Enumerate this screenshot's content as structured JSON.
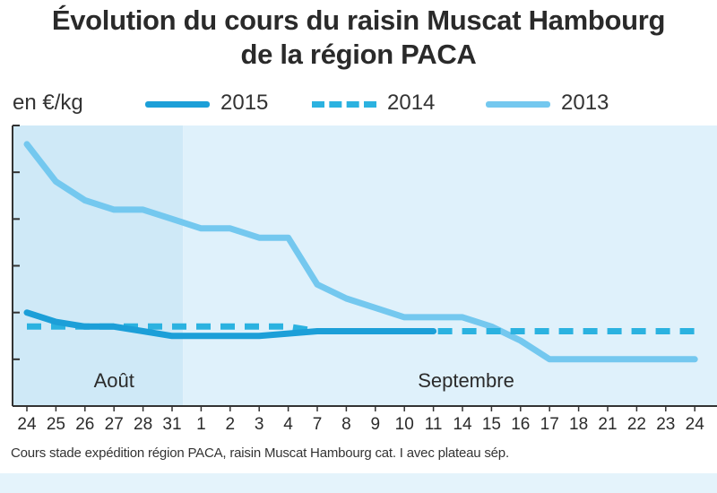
{
  "chart_data": {
    "type": "line",
    "title": [
      "Évolution du cours du raisin Muscat Hambourg",
      "de la région PACA"
    ],
    "ylabel": "en €/kg",
    "month_labels": [
      "Août",
      "Septembre"
    ],
    "categories": [
      "24",
      "25",
      "26",
      "27",
      "28",
      "31",
      "1",
      "2",
      "3",
      "4",
      "7",
      "8",
      "9",
      "10",
      "11",
      "14",
      "15",
      "16",
      "17",
      "18",
      "21",
      "22",
      "23",
      "24"
    ],
    "ylim": [
      0,
      6
    ],
    "series": [
      {
        "name": "2015",
        "style": "solid",
        "color": "#1c9fd8",
        "values": [
          2.0,
          1.8,
          1.7,
          1.7,
          1.6,
          1.5,
          1.5,
          1.5,
          1.5,
          1.55,
          1.6,
          1.6,
          1.6,
          1.6,
          1.6,
          null,
          null,
          null,
          null,
          null,
          null,
          null,
          null,
          null
        ]
      },
      {
        "name": "2014",
        "style": "dashed",
        "color": "#2bb2e0",
        "values": [
          1.7,
          1.7,
          1.7,
          1.7,
          1.7,
          1.7,
          1.7,
          1.7,
          1.7,
          1.7,
          1.6,
          1.6,
          1.6,
          1.6,
          1.6,
          1.6,
          1.6,
          1.6,
          1.6,
          1.6,
          1.6,
          1.6,
          1.6,
          1.6
        ]
      },
      {
        "name": "2013",
        "style": "solid",
        "color": "#74c8ef",
        "values": [
          5.6,
          4.8,
          4.4,
          4.2,
          4.2,
          4.0,
          3.8,
          3.8,
          3.6,
          3.6,
          2.6,
          2.3,
          2.1,
          1.9,
          1.9,
          1.9,
          1.7,
          1.4,
          1.0,
          1.0,
          1.0,
          1.0,
          1.0,
          1.0
        ]
      }
    ],
    "caption": "Cours stade expédition région PACA, raisin Muscat Hambourg cat. I avec plateau sép."
  },
  "colors": {
    "plot_bg_august": "#cfe9f7",
    "plot_bg_september": "#dff1fb",
    "axis": "#333333"
  }
}
